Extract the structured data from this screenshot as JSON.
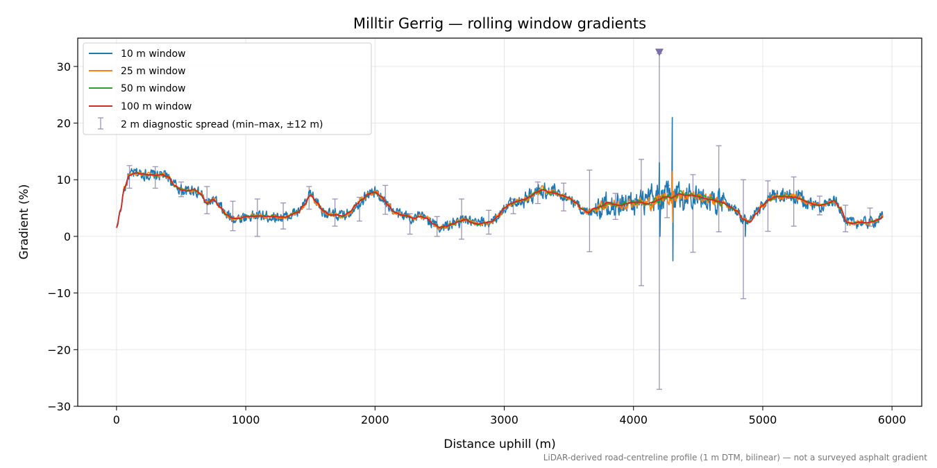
{
  "chart_data": {
    "type": "line",
    "title": "Milltir Gerrig — rolling window gradients",
    "xlabel": "Distance uphill (m)",
    "ylabel": "Gradient (%)",
    "xlim": [
      -300,
      6230
    ],
    "ylim": [
      -30,
      35
    ],
    "xticks": [
      0,
      1000,
      2000,
      3000,
      4000,
      5000,
      6000
    ],
    "yticks": [
      -30,
      -20,
      -10,
      0,
      10,
      20,
      30
    ],
    "xtick_labels": [
      "0",
      "1000",
      "2000",
      "3000",
      "4000",
      "5000",
      "6000"
    ],
    "ytick_labels": [
      "−30",
      "−20",
      "−10",
      "0",
      "10",
      "20",
      "30"
    ],
    "grid": true,
    "legend_position": "upper-left",
    "baseline_profile": {
      "x": [
        0,
        30,
        60,
        100,
        150,
        200,
        250,
        300,
        350,
        400,
        450,
        500,
        550,
        600,
        650,
        700,
        750,
        800,
        850,
        900,
        950,
        1000,
        1100,
        1200,
        1300,
        1400,
        1450,
        1500,
        1550,
        1600,
        1650,
        1700,
        1750,
        1800,
        1850,
        1900,
        1950,
        2000,
        2050,
        2100,
        2150,
        2200,
        2250,
        2300,
        2350,
        2400,
        2450,
        2500,
        2550,
        2600,
        2650,
        2700,
        2750,
        2800,
        2850,
        2900,
        2950,
        3000,
        3050,
        3100,
        3150,
        3200,
        3250,
        3300,
        3350,
        3400,
        3450,
        3500,
        3550,
        3600,
        3650,
        3700,
        3750,
        3800,
        3850,
        3900,
        3950,
        4000,
        4050,
        4100,
        4150,
        4200,
        4250,
        4300,
        4350,
        4400,
        4450,
        4500,
        4550,
        4600,
        4650,
        4700,
        4750,
        4800,
        4850,
        4900,
        4950,
        5000,
        5050,
        5100,
        5150,
        5200,
        5250,
        5300,
        5350,
        5400,
        5450,
        5500,
        5550,
        5600,
        5650,
        5700,
        5750,
        5800,
        5850,
        5900,
        5930
      ],
      "y": [
        1.5,
        4.5,
        8.5,
        10.8,
        11.2,
        11.0,
        10.9,
        10.8,
        10.9,
        10.5,
        9.0,
        8.2,
        8.0,
        8.3,
        7.5,
        5.8,
        6.5,
        5.2,
        3.8,
        3.2,
        3.2,
        3.5,
        3.6,
        3.5,
        3.4,
        4.2,
        5.5,
        7.3,
        6.0,
        4.5,
        3.8,
        3.8,
        3.6,
        4.2,
        5.5,
        6.5,
        7.5,
        7.8,
        7.0,
        5.5,
        4.3,
        3.8,
        3.6,
        3.2,
        3.5,
        3.2,
        2.2,
        1.6,
        1.8,
        2.2,
        2.6,
        3.0,
        2.4,
        2.2,
        2.4,
        2.6,
        3.5,
        5.0,
        5.8,
        6.2,
        6.5,
        7.0,
        7.8,
        8.2,
        7.8,
        7.6,
        7.2,
        6.8,
        6.0,
        4.8,
        4.2,
        5.0,
        5.3,
        6.0,
        5.6,
        5.5,
        5.8,
        6.0,
        6.0,
        5.8,
        6.0,
        6.5,
        7.0,
        6.8,
        7.5,
        7.2,
        7.3,
        7.0,
        6.7,
        6.5,
        6.2,
        5.8,
        5.2,
        4.5,
        3.0,
        2.5,
        4.0,
        5.5,
        6.5,
        7.0,
        7.0,
        7.0,
        6.9,
        6.5,
        6.0,
        5.6,
        5.5,
        5.8,
        6.3,
        5.0,
        2.5,
        2.3,
        2.5,
        2.4,
        2.6,
        3.0,
        3.5
      ]
    },
    "series": [
      {
        "name": "10 m window",
        "color": "#1f77b4",
        "window_m": 10
      },
      {
        "name": "25 m window",
        "color": "#ff7f0e",
        "window_m": 25
      },
      {
        "name": "50 m window",
        "color": "#2ca02c",
        "window_m": 50
      },
      {
        "name": "100 m window",
        "color": "#d62728",
        "window_m": 100
      }
    ],
    "spikes_10m": [
      {
        "x": 4200,
        "y": 13.0
      },
      {
        "x": 4205,
        "y": 0.0
      },
      {
        "x": 4300,
        "y": 21.0
      },
      {
        "x": 4305,
        "y": -4.3
      },
      {
        "x": 4865,
        "y": 0.0
      }
    ],
    "spikes_25m": [
      {
        "x": 4297,
        "y": 11.5
      },
      {
        "x": 4303,
        "y": 2.5
      }
    ],
    "error_bars": {
      "name": "2 m diagnostic spread (min–max, ±12 m)",
      "color": "#9b93b8",
      "points": [
        {
          "x": 100,
          "y_min": 8.5,
          "y_max": 12.5
        },
        {
          "x": 300,
          "y_min": 8.5,
          "y_max": 12.3
        },
        {
          "x": 500,
          "y_min": 7.0,
          "y_max": 9.6
        },
        {
          "x": 700,
          "y_min": 4.0,
          "y_max": 8.8
        },
        {
          "x": 900,
          "y_min": 1.0,
          "y_max": 6.2
        },
        {
          "x": 1090,
          "y_min": 0.0,
          "y_max": 6.6
        },
        {
          "x": 1290,
          "y_min": 1.3,
          "y_max": 5.9
        },
        {
          "x": 1490,
          "y_min": 4.8,
          "y_max": 8.8
        },
        {
          "x": 1690,
          "y_min": 1.8,
          "y_max": 6.6
        },
        {
          "x": 1880,
          "y_min": 2.7,
          "y_max": 6.9
        },
        {
          "x": 2080,
          "y_min": 3.9,
          "y_max": 9.0
        },
        {
          "x": 2270,
          "y_min": 0.4,
          "y_max": 4.0
        },
        {
          "x": 2480,
          "y_min": 0.0,
          "y_max": 3.5
        },
        {
          "x": 2670,
          "y_min": -0.5,
          "y_max": 6.6
        },
        {
          "x": 2880,
          "y_min": 0.4,
          "y_max": 4.6
        },
        {
          "x": 3070,
          "y_min": 4.0,
          "y_max": 6.6
        },
        {
          "x": 3260,
          "y_min": 5.8,
          "y_max": 9.6
        },
        {
          "x": 3460,
          "y_min": 4.5,
          "y_max": 9.4
        },
        {
          "x": 3660,
          "y_min": -2.7,
          "y_max": 11.7
        },
        {
          "x": 3860,
          "y_min": 3.0,
          "y_max": 7.6
        },
        {
          "x": 4060,
          "y_min": -8.7,
          "y_max": 13.6
        },
        {
          "x": 4200,
          "y_min": -27.0,
          "y_max": 32.3
        },
        {
          "x": 4260,
          "y_min": 3.3,
          "y_max": 9.0
        },
        {
          "x": 4460,
          "y_min": -2.8,
          "y_max": 10.9
        },
        {
          "x": 4660,
          "y_min": 0.8,
          "y_max": 16.0
        },
        {
          "x": 4850,
          "y_min": -11.0,
          "y_max": 10.0
        },
        {
          "x": 5040,
          "y_min": 0.9,
          "y_max": 9.8
        },
        {
          "x": 5240,
          "y_min": 1.8,
          "y_max": 10.5
        },
        {
          "x": 5440,
          "y_min": 3.8,
          "y_max": 7.1
        },
        {
          "x": 5640,
          "y_min": 0.8,
          "y_max": 5.5
        },
        {
          "x": 5830,
          "y_min": 1.8,
          "y_max": 5.0
        }
      ],
      "clipped_marker": {
        "x": 4200,
        "y": 32.4
      }
    },
    "footnote": "LiDAR-derived road-centreline profile (1 m DTM, bilinear) — not a surveyed asphalt gradient"
  }
}
